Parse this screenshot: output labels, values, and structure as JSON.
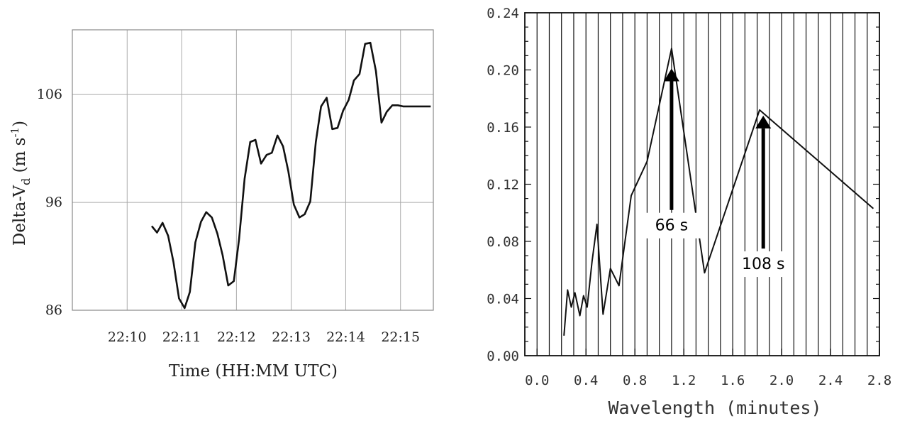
{
  "chart_data": [
    {
      "type": "line",
      "ylabel": "Delta-V",
      "ylabel_sub": "d",
      "ylabel_units_pre": " (m s",
      "ylabel_units_sup": "-1",
      "ylabel_units_post": ")",
      "xlabel": "Time (HH:MM UTC)",
      "xlim": [
        22.15,
        22.26
      ],
      "ylim": [
        86,
        112
      ],
      "xticks": [
        22.1667,
        22.1833,
        22.2,
        22.2167,
        22.2333,
        22.25
      ],
      "xtick_labels": [
        "22:10",
        "22:11",
        "22:12",
        "22:13",
        "22:14",
        "22:15"
      ],
      "yticks": [
        86,
        96,
        106
      ],
      "ytick_labels": [
        "86",
        "96",
        "106"
      ],
      "grid": true,
      "series": [
        {
          "x": [
            22.1742,
            22.1758,
            22.1775,
            22.1792,
            22.1808,
            22.1825,
            22.1842,
            22.1858,
            22.1875,
            22.1892,
            22.1908,
            22.1925,
            22.1942,
            22.1958,
            22.1975,
            22.1992,
            22.2008,
            22.2025,
            22.2042,
            22.2058,
            22.2075,
            22.2092,
            22.2108,
            22.2125,
            22.2142,
            22.2158,
            22.2175,
            22.2192,
            22.2208,
            22.2225,
            22.2242,
            22.2258,
            22.2275,
            22.2292,
            22.2308,
            22.2325,
            22.2342,
            22.2358,
            22.2375,
            22.2392,
            22.2408,
            22.2425,
            22.2442,
            22.2458,
            22.2475,
            22.2492,
            22.2508,
            22.2525,
            22.2542,
            22.2558,
            22.2575,
            22.2592
          ],
          "y": [
            93.8,
            93.2,
            94.1,
            92.9,
            90.5,
            87.1,
            86.2,
            87.7,
            92.3,
            94.2,
            95.1,
            94.6,
            93.1,
            91.1,
            88.3,
            88.7,
            92.6,
            98.2,
            101.6,
            101.8,
            99.6,
            100.4,
            100.6,
            102.2,
            101.2,
            98.9,
            95.8,
            94.6,
            94.9,
            96.1,
            101.6,
            104.9,
            105.7,
            102.8,
            102.9,
            104.5,
            105.5,
            107.3,
            107.9,
            110.7,
            110.8,
            108.2,
            103.4,
            104.4,
            105.0,
            105.0,
            104.9,
            104.9,
            104.9,
            104.9,
            104.9,
            104.9
          ]
        }
      ]
    },
    {
      "type": "line",
      "xlabel": "Wavelength (minutes)",
      "ylabel": "",
      "xlim": [
        -0.1,
        2.8
      ],
      "ylim": [
        0,
        0.24
      ],
      "xticks": [
        0,
        0.4,
        0.8,
        1.2,
        1.6,
        2.0,
        2.4,
        2.8
      ],
      "xtick_labels": [
        "0.0",
        "0.4",
        "0.8",
        "1.2",
        "1.6",
        "2.0",
        "2.4",
        "2.8"
      ],
      "yticks": [
        0,
        0.04,
        0.08,
        0.12,
        0.16,
        0.2,
        0.24
      ],
      "ytick_labels": [
        "0.00",
        "0.04",
        "0.08",
        "0.12",
        "0.16",
        "0.20",
        "0.24"
      ],
      "grid": "vertical",
      "series": [
        {
          "x": [
            0.22,
            0.25,
            0.28,
            0.31,
            0.35,
            0.38,
            0.41,
            0.45,
            0.49,
            0.54,
            0.6,
            0.67,
            0.77,
            0.9,
            1.1,
            1.37,
            1.82,
            2.75
          ],
          "y": [
            0.014,
            0.046,
            0.034,
            0.044,
            0.028,
            0.042,
            0.034,
            0.066,
            0.092,
            0.029,
            0.061,
            0.049,
            0.112,
            0.136,
            0.215,
            0.058,
            0.172,
            0.103
          ]
        }
      ],
      "annotations": [
        {
          "text": "66 s",
          "x": 1.1,
          "y_from": 0.102,
          "y_to": 0.201
        },
        {
          "text": "108 s",
          "x": 1.85,
          "y_from": 0.075,
          "y_to": 0.168
        }
      ]
    }
  ]
}
